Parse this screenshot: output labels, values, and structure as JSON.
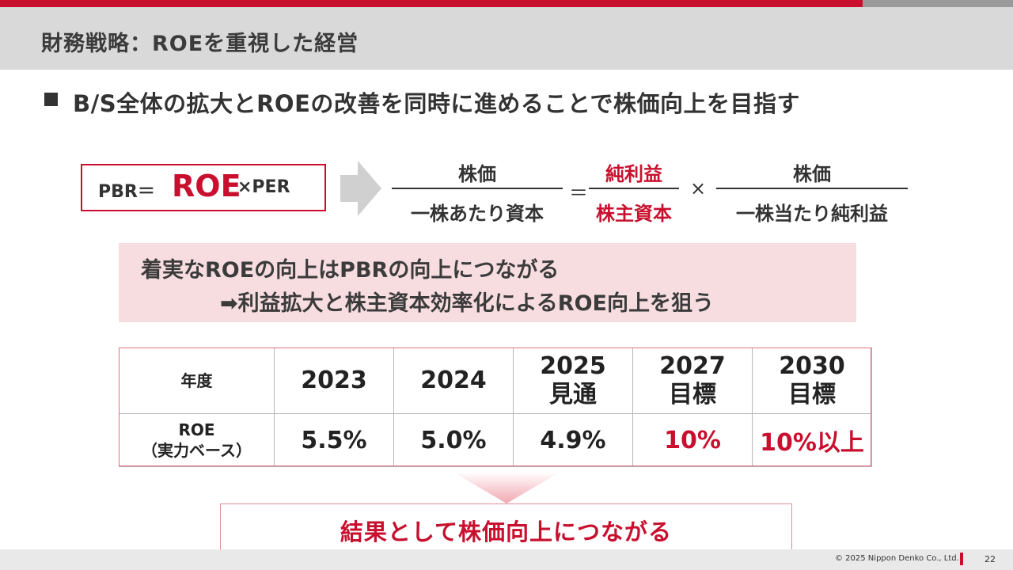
{
  "header": {
    "title": "財務戦略：ROEを重視した経営"
  },
  "headline": "B/S全体の拡大とROEの改善を同時に進めることで株価向上を目指す",
  "formula": {
    "pbr_label": "PBR＝",
    "roe": "ROE",
    "times_per": "×PER",
    "fraction1_numerator": "株価",
    "fraction1_denominator": "一株あたり資本",
    "equals": "＝",
    "fraction2_numerator": "純利益",
    "fraction2_denominator": "株主資本",
    "times": "×",
    "fraction3_numerator": "株価",
    "fraction3_denominator": "一株当たり純利益"
  },
  "callout": {
    "line1": "着実なROEの向上はPBRの向上につながる",
    "line2": "➡利益拡大と株主資本効率化によるROE向上を狙う"
  },
  "table": {
    "header_label": "年度",
    "years": [
      {
        "year": "2023",
        "note": ""
      },
      {
        "year": "2024",
        "note": ""
      },
      {
        "year": "2025",
        "note": "見通"
      },
      {
        "year": "2027",
        "note": "目標"
      },
      {
        "year": "2030",
        "note": "目標"
      }
    ],
    "row_label_line1": "ROE",
    "row_label_line2": "（実力ベース）",
    "values": [
      "5.5%",
      "5.0%",
      "4.9%",
      "10%",
      "10%以上"
    ]
  },
  "result": "結果として株価向上につながる",
  "footer": {
    "copyright": "© 2025 Nippon Denko Co., Ltd.",
    "page_number": "22"
  },
  "colors": {
    "accent_red": "#c8102e",
    "title_band": "#d9d9d9",
    "callout_pink": "#f7dde0"
  }
}
